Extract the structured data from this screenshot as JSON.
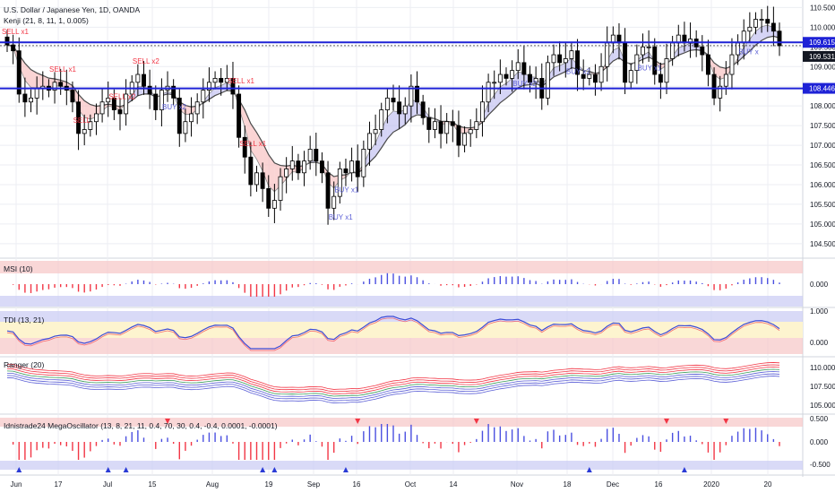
{
  "header": {
    "symbol_title": "U.S. Dollar / Japanese Yen, 1D, OANDA",
    "indicator_main": "Kenji (21, 8, 11, 1, 0.005)"
  },
  "panes": {
    "msi_title": "MSI (10)",
    "tdi_title": "TDI (13, 21)",
    "ranger_title": "Ranger (20)",
    "mega_title": "Idnistrade24 MegaOscillator (13, 8, 21, 11, 0.4, 70, 30, 0.4, -0.4, 0.0001, -0.0001)"
  },
  "price_axis": {
    "ticks": [
      "110.500",
      "110.000",
      "109.500",
      "109.000",
      "108.500",
      "108.000",
      "107.500",
      "107.000",
      "106.500",
      "106.000",
      "105.500",
      "105.000",
      "104.500"
    ],
    "tag_upper": "109.615",
    "tag_last": "109.531",
    "tag_lower": "108.446"
  },
  "msi_axis": {
    "ticks": [
      "0.000"
    ]
  },
  "tdi_axis": {
    "ticks": [
      "1.000",
      "0.000"
    ]
  },
  "ranger_axis": {
    "ticks": [
      "110.000",
      "107.500",
      "105.000"
    ]
  },
  "mega_axis": {
    "ticks": [
      "0.500",
      "0.000",
      "-0.500"
    ]
  },
  "time_axis": {
    "labels": [
      "Jun",
      "17",
      "Jul",
      "15",
      "Aug",
      "19",
      "Sep",
      "16",
      "Oct",
      "14",
      "Nov",
      "18",
      "Dec",
      "16",
      "2020",
      "20"
    ]
  },
  "signals": [
    {
      "text": "SELL x1",
      "color": "#f23645"
    },
    {
      "text": "SELL x1",
      "color": "#f23645"
    },
    {
      "text": "SELL",
      "color": "#f23645"
    },
    {
      "text": "SELL x2",
      "color": "#f23645"
    },
    {
      "text": "SELL x2",
      "color": "#f23645"
    },
    {
      "text": "BUY x2",
      "color": "#5b5fd6"
    },
    {
      "text": "SELL x1",
      "color": "#f23645"
    },
    {
      "text": "SELL x1",
      "color": "#f23645"
    },
    {
      "text": "BUY x1",
      "color": "#5b5fd6"
    },
    {
      "text": "BUY x1",
      "color": "#5b5fd6"
    },
    {
      "text": "BUY x2",
      "color": "#5b5fd6"
    },
    {
      "text": "BUY x2",
      "color": "#5b5fd6"
    },
    {
      "text": "BUY x1",
      "color": "#5b5fd6"
    },
    {
      "text": "BUY x",
      "color": "#5b5fd6"
    }
  ],
  "colors": {
    "up_candle": "#ffffff",
    "down_candle": "#000000",
    "level_line": "#1e22d6",
    "kenji_line": "#4a4a4a",
    "bull_fill": "#b9b8ee",
    "bear_fill": "#f6b7b7",
    "neutral_fill": "#bfe8c7",
    "msi_pos": "#4a4fe0",
    "msi_neg": "#f23645",
    "band_red": "#f7c6c6",
    "band_blue": "#c9cbf3",
    "band_yellow": "#fdf4cf",
    "grid": "#eceef3"
  },
  "chart_data": {
    "type": "candlestick",
    "title": "U.S. Dollar / Japanese Yen, 1D, OANDA",
    "x_start": "2019-05-29",
    "x_end": "2020-01-24",
    "ylim": [
      104.2,
      110.6
    ],
    "levels": [
      109.615,
      108.446
    ],
    "last_price": 109.531,
    "close": [
      109.55,
      109.4,
      108.3,
      108.1,
      108.2,
      108.45,
      108.5,
      108.4,
      108.6,
      108.5,
      108.4,
      108.1,
      107.3,
      107.4,
      107.6,
      107.8,
      108.1,
      108.2,
      107.9,
      107.8,
      108.3,
      108.6,
      108.8,
      108.5,
      108.3,
      107.9,
      108.4,
      108.5,
      108.2,
      107.3,
      107.6,
      107.8,
      108.1,
      108.4,
      108.6,
      108.7,
      108.6,
      108.7,
      108.3,
      107.2,
      106.7,
      106.0,
      106.3,
      105.9,
      105.4,
      105.6,
      106.2,
      106.4,
      106.6,
      106.3,
      106.6,
      106.9,
      106.6,
      106.3,
      105.4,
      105.7,
      106.4,
      106.3,
      106.6,
      106.2,
      106.9,
      107.3,
      107.4,
      107.9,
      108.2,
      108.1,
      107.8,
      108.0,
      108.5,
      108.1,
      107.7,
      107.4,
      107.6,
      107.3,
      107.6,
      107.5,
      107.0,
      107.3,
      107.4,
      107.6,
      108.1,
      108.6,
      108.6,
      108.8,
      108.7,
      108.9,
      109.1,
      108.8,
      108.6,
      108.7,
      108.2,
      109.1,
      109.3,
      109.1,
      109.2,
      109.4,
      108.8,
      108.7,
      108.8,
      108.6,
      109.0,
      109.6,
      109.8,
      109.6,
      108.6,
      108.9,
      109.3,
      109.5,
      109.5,
      108.8,
      108.6,
      109.2,
      109.6,
      109.8,
      109.6,
      109.7,
      109.5,
      109.3,
      108.8,
      108.2,
      108.5,
      108.8,
      109.3,
      109.6,
      109.9,
      110.0,
      110.2,
      110.2,
      110.1,
      109.9,
      109.53
    ],
    "series": [
      {
        "name": "MSI (10)",
        "values_desc": "histogram"
      },
      {
        "name": "TDI (13, 21)",
        "values_desc": "oscillator 0-1"
      },
      {
        "name": "Ranger (20)",
        "values_desc": "price bands"
      },
      {
        "name": "Idnistrade24 MegaOscillator",
        "values_desc": "histogram -0.5..0.5"
      }
    ]
  }
}
